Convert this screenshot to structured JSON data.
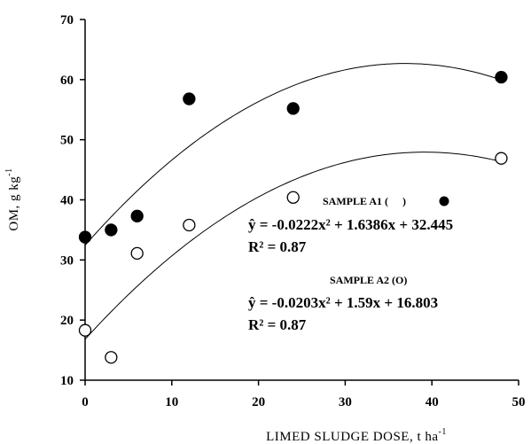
{
  "chart_data": {
    "type": "scatter",
    "xlabel": "LIMED SLUDGE DOSE, t ha",
    "xlabel_sup": "-1",
    "ylabel": "OM, g kg",
    "ylabel_sup": "-1",
    "xlim": [
      0,
      50
    ],
    "ylim": [
      10,
      70
    ],
    "x_ticks": [
      "0",
      "10",
      "20",
      "30",
      "40",
      "50"
    ],
    "y_ticks": [
      "10",
      "20",
      "30",
      "40",
      "50",
      "60",
      "70"
    ],
    "grid": false,
    "series": [
      {
        "name": "SAMPLE A1",
        "marker": "filled-circle",
        "color": "#000000",
        "x": [
          0,
          3,
          6,
          12,
          24,
          48
        ],
        "y": [
          33.8,
          35.0,
          37.3,
          56.8,
          55.2,
          60.4
        ],
        "fit": {
          "a": -0.0222,
          "b": 1.6386,
          "c": 32.445
        }
      },
      {
        "name": "SAMPLE A2",
        "marker": "open-circle",
        "color": "#000000",
        "x": [
          0,
          3,
          6,
          12,
          24,
          48
        ],
        "y": [
          18.3,
          13.8,
          31.1,
          35.8,
          40.4,
          46.9
        ],
        "fit": {
          "a": -0.0203,
          "b": 1.59,
          "c": 16.803
        }
      }
    ],
    "annotations": {
      "a1_title": "SAMPLE A1 (",
      "a1_title_end": ")",
      "a1_equation": "ŷ = -0.0222x² + 1.6386x + 32.445",
      "a1_r2": "R² = 0.87",
      "a2_title": "SAMPLE A2 (O)",
      "a2_equation": "ŷ = -0.0203x² + 1.59x + 16.803",
      "a2_r2": "R² = 0.87"
    }
  }
}
